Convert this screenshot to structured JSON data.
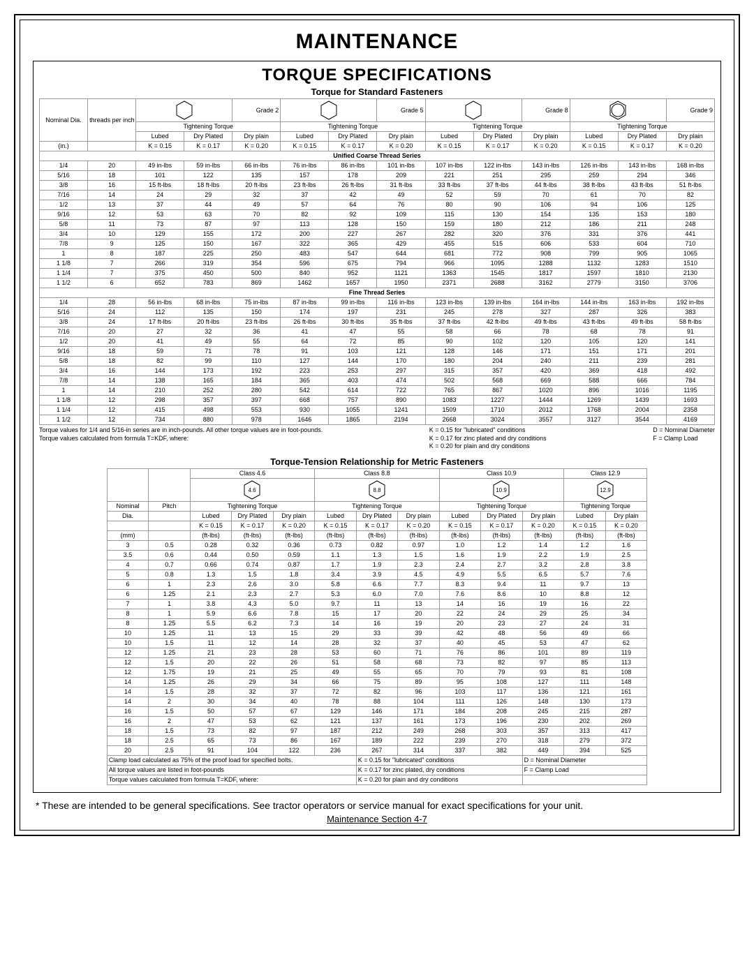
{
  "page": {
    "title": "MAINTENANCE",
    "section": "TORQUE SPECIFICATIONS",
    "table1_title": "Torque for Standard Fasteners",
    "coarse_title": "Unified Coarse Thread Series",
    "fine_title": "Fine Thread Series",
    "table2_title": "Torque-Tension Relationship for Metric Fasteners",
    "disclaimer": "* These are intended to be general specifications.   See tractor operators or service manual for exact specifications for your unit.",
    "pager": "Maintenance Section   4-7"
  },
  "std_header": {
    "nom": "Nominal Dia.",
    "tpi": "threads per inch",
    "in_unit": "(in.)",
    "grades": [
      "Grade 2",
      "Grade 5",
      "Grade 8",
      "Grade 9"
    ],
    "tt": "Tightening Torque",
    "cond": [
      "Lubed",
      "Dry Plated",
      "Dry plain"
    ],
    "k": [
      "K = 0.15",
      "K = 0.17",
      "K = 0.20"
    ]
  },
  "coarse": [
    [
      "1/4",
      "20",
      "49 in-lbs",
      "59   in-lbs",
      "66   in-lbs",
      "76 in-lbs",
      "86  in-lbs",
      "101  in-lbs",
      "107 in-lbs",
      "122  in-lbs",
      "143  in-lbs",
      "126 in-lbs",
      "143 in-lbs",
      "168 in-lbs"
    ],
    [
      "5/16",
      "18",
      "101",
      "122",
      "135",
      "157",
      "178",
      "209",
      "221",
      "251",
      "295",
      "259",
      "294",
      "346"
    ],
    [
      "3/8",
      "16",
      "15 ft-lbs",
      "18  ft-lbs",
      "20  ft-lbs",
      "23  ft-lbs",
      "26  ft-lbs",
      "31  ft-lbs",
      "33 ft-lbs",
      "37  ft-lbs",
      "44  ft-lbs",
      "38  ft-lbs",
      "43  ft-lbs",
      "51  ft-lbs"
    ],
    [
      "7/16",
      "14",
      "24",
      "29",
      "32",
      "37",
      "42",
      "49",
      "52",
      "59",
      "70",
      "61",
      "70",
      "82"
    ],
    [
      "1/2",
      "13",
      "37",
      "44",
      "49",
      "57",
      "64",
      "76",
      "80",
      "90",
      "106",
      "94",
      "106",
      "125"
    ],
    [
      "9/16",
      "12",
      "53",
      "63",
      "70",
      "82",
      "92",
      "109",
      "115",
      "130",
      "154",
      "135",
      "153",
      "180"
    ],
    [
      "5/8",
      "11",
      "73",
      "87",
      "97",
      "113",
      "128",
      "150",
      "159",
      "180",
      "212",
      "186",
      "211",
      "248"
    ],
    [
      "3/4",
      "10",
      "129",
      "155",
      "172",
      "200",
      "227",
      "267",
      "282",
      "320",
      "376",
      "331",
      "376",
      "441"
    ],
    [
      "7/8",
      "9",
      "125",
      "150",
      "167",
      "322",
      "365",
      "429",
      "455",
      "515",
      "606",
      "533",
      "604",
      "710"
    ],
    [
      "1",
      "8",
      "187",
      "225",
      "250",
      "483",
      "547",
      "644",
      "681",
      "772",
      "908",
      "799",
      "905",
      "1065"
    ],
    [
      "1 1/8",
      "7",
      "266",
      "319",
      "354",
      "596",
      "675",
      "794",
      "966",
      "1095",
      "1288",
      "1132",
      "1283",
      "1510"
    ],
    [
      "1 1/4",
      "7",
      "375",
      "450",
      "500",
      "840",
      "952",
      "1121",
      "1363",
      "1545",
      "1817",
      "1597",
      "1810",
      "2130"
    ],
    [
      "1 1/2",
      "6",
      "652",
      "783",
      "869",
      "1462",
      "1657",
      "1950",
      "2371",
      "2688",
      "3162",
      "2779",
      "3150",
      "3706"
    ]
  ],
  "fine": [
    [
      "1/4",
      "28",
      "56 in-lbs",
      "68 in-lbs",
      "75 in-lbs",
      "87 in-lbs",
      "99  in-lbs",
      "116 in-lbs",
      "123 in-lbs",
      "139 in-lbs",
      "164 in-lbs",
      "144 in-lbs",
      "163 in-lbs",
      "192 in-lbs"
    ],
    [
      "5/16",
      "24",
      "112",
      "135",
      "150",
      "174",
      "197",
      "231",
      "245",
      "278",
      "327",
      "287",
      "326",
      "383"
    ],
    [
      "3/8",
      "24",
      "17 ft-lbs",
      "20  ft-lbs",
      "23 ft-lbs",
      "26 ft-lbs",
      "30  ft-lbs",
      "35  ft-lbs",
      "37  ft-lbs",
      "42  ft-lbs",
      "49  ft-lbs",
      "43  ft-lbs",
      "49  ft-lbs",
      "58 ft-lbs"
    ],
    [
      "7/16",
      "20",
      "27",
      "32",
      "36",
      "41",
      "47",
      "55",
      "58",
      "66",
      "78",
      "68",
      "78",
      "91"
    ],
    [
      "1/2",
      "20",
      "41",
      "49",
      "55",
      "64",
      "72",
      "85",
      "90",
      "102",
      "120",
      "105",
      "120",
      "141"
    ],
    [
      "9/16",
      "18",
      "59",
      "71",
      "78",
      "91",
      "103",
      "121",
      "128",
      "146",
      "171",
      "151",
      "171",
      "201"
    ],
    [
      "5/8",
      "18",
      "82",
      "99",
      "110",
      "127",
      "144",
      "170",
      "180",
      "204",
      "240",
      "211",
      "239",
      "281"
    ],
    [
      "3/4",
      "16",
      "144",
      "173",
      "192",
      "223",
      "253",
      "297",
      "315",
      "357",
      "420",
      "369",
      "418",
      "492"
    ],
    [
      "7/8",
      "14",
      "138",
      "165",
      "184",
      "365",
      "403",
      "474",
      "502",
      "568",
      "669",
      "588",
      "666",
      "784"
    ],
    [
      "1",
      "14",
      "210",
      "252",
      "280",
      "542",
      "614",
      "722",
      "765",
      "867",
      "1020",
      "896",
      "1016",
      "1195"
    ],
    [
      "1 1/8",
      "12",
      "298",
      "357",
      "397",
      "668",
      "757",
      "890",
      "1083",
      "1227",
      "1444",
      "1269",
      "1439",
      "1693"
    ],
    [
      "1 1/4",
      "12",
      "415",
      "498",
      "553",
      "930",
      "1055",
      "1241",
      "1509",
      "1710",
      "2012",
      "1768",
      "2004",
      "2358"
    ],
    [
      "1 1/2",
      "12",
      "734",
      "880",
      "978",
      "1646",
      "1865",
      "2194",
      "2668",
      "3024",
      "3557",
      "3127",
      "3544",
      "4169"
    ]
  ],
  "std_foot": {
    "left1": "Torque values for 1/4 and 5/16-in series are in inch-pounds.  All other torque values are in foot-pounds.",
    "left2": "Torque values calculated from formula T=KDF, where:",
    "right1": "K = 0.15 for \"lubricated\" conditions",
    "right2": "K = 0.17 for zinc plated and dry conditions",
    "right3": "K = 0.20 for plain and dry conditions",
    "r1": "D = Nominal Diameter",
    "r2": "F = Clamp Load"
  },
  "metric_header": {
    "classes": [
      "Class 4.6",
      "Class 8.8",
      "Class 10.9",
      "Class 12.9"
    ],
    "marks": [
      "4.6",
      "8.8",
      "10.9",
      "12.9"
    ],
    "nom": "Nominal Dia.",
    "pitch": "Pitch",
    "mm": "(mm)",
    "tt": "Tightening Torque",
    "cond": [
      "Lubed",
      "Dry Plated",
      "Dry plain",
      "Lubed",
      "Dry Plated",
      "Dry plain",
      "Lubed",
      "Dry Plated",
      "Dry plain",
      "Lubed",
      "Dry plain"
    ],
    "k": [
      "K = 0.15",
      "K = 0.17",
      "K = 0.20",
      "K = 0.15",
      "K = 0.17",
      "K = 0.20",
      "K = 0.15",
      "K = 0.17",
      "K = 0.20",
      "K = 0.15",
      "K = 0.20"
    ],
    "unit": "(ft-lbs)"
  },
  "metric": [
    [
      "3",
      "0.5",
      "0.28",
      "0.32",
      "0.36",
      "0.73",
      "0.82",
      "0.97",
      "1.0",
      "1.2",
      "1.4",
      "1.2",
      "1.6"
    ],
    [
      "3.5",
      "0.6",
      "0.44",
      "0.50",
      "0.59",
      "1.1",
      "1.3",
      "1.5",
      "1.6",
      "1.9",
      "2.2",
      "1.9",
      "2.5"
    ],
    [
      "4",
      "0.7",
      "0.66",
      "0.74",
      "0.87",
      "1.7",
      "1.9",
      "2.3",
      "2.4",
      "2.7",
      "3.2",
      "2.8",
      "3.8"
    ],
    [
      "5",
      "0.8",
      "1.3",
      "1.5",
      "1.8",
      "3.4",
      "3.9",
      "4.5",
      "4.9",
      "5.5",
      "6.5",
      "5.7",
      "7.6"
    ],
    [
      "6",
      "1",
      "2.3",
      "2.6",
      "3.0",
      "5.8",
      "6.6",
      "7.7",
      "8.3",
      "9.4",
      "11",
      "9.7",
      "13"
    ],
    [
      "6",
      "1.25",
      "2.1",
      "2.3",
      "2.7",
      "5.3",
      "6.0",
      "7.0",
      "7.6",
      "8.6",
      "10",
      "8.8",
      "12"
    ],
    [
      "7",
      "1",
      "3.8",
      "4.3",
      "5.0",
      "9.7",
      "11",
      "13",
      "14",
      "16",
      "19",
      "16",
      "22"
    ],
    [
      "8",
      "1",
      "5.9",
      "6.6",
      "7.8",
      "15",
      "17",
      "20",
      "22",
      "24",
      "29",
      "25",
      "34"
    ],
    [
      "8",
      "1.25",
      "5.5",
      "6.2",
      "7.3",
      "14",
      "16",
      "19",
      "20",
      "23",
      "27",
      "24",
      "31"
    ],
    [
      "10",
      "1.25",
      "11",
      "13",
      "15",
      "29",
      "33",
      "39",
      "42",
      "48",
      "56",
      "49",
      "66"
    ],
    [
      "10",
      "1.5",
      "11",
      "12",
      "14",
      "28",
      "32",
      "37",
      "40",
      "45",
      "53",
      "47",
      "62"
    ],
    [
      "12",
      "1.25",
      "21",
      "23",
      "28",
      "53",
      "60",
      "71",
      "76",
      "86",
      "101",
      "89",
      "119"
    ],
    [
      "12",
      "1.5",
      "20",
      "22",
      "26",
      "51",
      "58",
      "68",
      "73",
      "82",
      "97",
      "85",
      "113"
    ],
    [
      "12",
      "1.75",
      "19",
      "21",
      "25",
      "49",
      "55",
      "65",
      "70",
      "79",
      "93",
      "81",
      "108"
    ],
    [
      "14",
      "1.25",
      "26",
      "29",
      "34",
      "66",
      "75",
      "89",
      "95",
      "108",
      "127",
      "111",
      "148"
    ],
    [
      "14",
      "1.5",
      "28",
      "32",
      "37",
      "72",
      "82",
      "96",
      "103",
      "117",
      "136",
      "121",
      "161"
    ],
    [
      "14",
      "2",
      "30",
      "34",
      "40",
      "78",
      "88",
      "104",
      "111",
      "126",
      "148",
      "130",
      "173"
    ],
    [
      "16",
      "1.5",
      "50",
      "57",
      "67",
      "129",
      "146",
      "171",
      "184",
      "208",
      "245",
      "215",
      "287"
    ],
    [
      "16",
      "2",
      "47",
      "53",
      "62",
      "121",
      "137",
      "161",
      "173",
      "196",
      "230",
      "202",
      "269"
    ],
    [
      "18",
      "1.5",
      "73",
      "82",
      "97",
      "187",
      "212",
      "249",
      "268",
      "303",
      "357",
      "313",
      "417"
    ],
    [
      "18",
      "2.5",
      "65",
      "73",
      "86",
      "167",
      "189",
      "222",
      "239",
      "270",
      "318",
      "279",
      "372"
    ],
    [
      "20",
      "2.5",
      "91",
      "104",
      "122",
      "236",
      "267",
      "314",
      "337",
      "382",
      "449",
      "394",
      "525"
    ]
  ],
  "metric_foot": {
    "l1": "Clamp load calculated as 75% of the proof load for specified bolts.",
    "l2": "All torque values are listed in foot-pounds",
    "l3": "Torque values calculated from formula T=KDF, where:",
    "m1": "K = 0.15 for \"lubricated\" conditions",
    "m2": "K = 0.17 for zinc plated, dry conditions",
    "m3": "K = 0.20 for plain and dry conditions",
    "r1": "D = Nominal Diameter",
    "r2": "F = Clamp Load"
  },
  "hex_fill": "#ffffff",
  "hex_stroke": "#000000"
}
